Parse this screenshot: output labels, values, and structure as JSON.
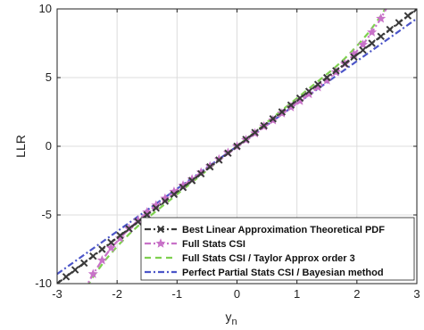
{
  "chart_data": {
    "type": "line",
    "title": "",
    "xlabel": "y",
    "xlabel_sub": "n",
    "ylabel": "LLR",
    "xlim": [
      -3,
      3
    ],
    "ylim": [
      -10,
      10
    ],
    "x_ticks": [
      -3,
      -2,
      -1,
      0,
      1,
      2,
      3
    ],
    "y_ticks": [
      -10,
      -5,
      0,
      5,
      10
    ],
    "x_tick_labels": [
      "-3",
      "-2",
      "-1",
      "0",
      "1",
      "2",
      "3"
    ],
    "y_tick_labels": [
      "-10",
      "-5",
      "0",
      "5",
      "10"
    ],
    "grid": true,
    "legend_position": "bottom-right",
    "series": [
      {
        "name": "Best Linear Approximation Theoretical PDF",
        "color": "#3a3a3a",
        "style": "dash-dot",
        "marker": "x",
        "x": [
          -3.0,
          -2.85,
          -2.7,
          -2.55,
          -2.4,
          -2.25,
          -2.1,
          -1.95,
          -1.8,
          -1.65,
          -1.5,
          -1.35,
          -1.2,
          -1.05,
          -0.9,
          -0.75,
          -0.6,
          -0.45,
          -0.3,
          -0.15,
          0.0,
          0.15,
          0.3,
          0.45,
          0.6,
          0.75,
          0.9,
          1.05,
          1.2,
          1.35,
          1.5,
          1.65,
          1.8,
          1.95,
          2.1,
          2.25,
          2.4,
          2.55,
          2.7,
          2.85,
          3.0
        ],
        "y": [
          -10.0,
          -9.5,
          -9.0,
          -8.5,
          -8.0,
          -7.5,
          -7.0,
          -6.5,
          -6.0,
          -5.5,
          -5.0,
          -4.5,
          -4.0,
          -3.5,
          -3.0,
          -2.5,
          -2.0,
          -1.5,
          -1.0,
          -0.5,
          0.0,
          0.5,
          1.0,
          1.5,
          2.0,
          2.5,
          3.0,
          3.5,
          4.0,
          4.5,
          5.0,
          5.5,
          6.0,
          6.5,
          7.0,
          7.5,
          8.0,
          8.5,
          9.0,
          9.5,
          10.0
        ]
      },
      {
        "name": "Full Stats CSI",
        "color": "#c872c8",
        "style": "dash-dot",
        "marker": "star",
        "x": [
          -2.55,
          -2.4,
          -2.25,
          -2.1,
          -1.95,
          -1.8,
          -1.65,
          -1.5,
          -1.35,
          -1.2,
          -1.05,
          -0.9,
          -0.75,
          -0.6,
          -0.45,
          -0.3,
          -0.15,
          0.0,
          0.15,
          0.3,
          0.45,
          0.6,
          0.75,
          0.9,
          1.05,
          1.2,
          1.35,
          1.5,
          1.65,
          1.8,
          1.95,
          2.1,
          2.25,
          2.4,
          2.55
        ],
        "y": [
          -10.5,
          -9.3,
          -8.3,
          -7.4,
          -6.7,
          -6.0,
          -5.4,
          -4.8,
          -4.3,
          -3.8,
          -3.3,
          -2.85,
          -2.4,
          -1.9,
          -1.45,
          -0.95,
          -0.47,
          0.0,
          0.47,
          0.95,
          1.45,
          1.9,
          2.4,
          2.85,
          3.3,
          3.8,
          4.3,
          4.8,
          5.4,
          6.0,
          6.7,
          7.4,
          8.3,
          9.3,
          10.5
        ]
      },
      {
        "name": "Full Stats CSI / Taylor Approx order 3",
        "color": "#7ed04f",
        "style": "dashed",
        "marker": "none",
        "x": [
          -2.6,
          -2.4,
          -2.2,
          -2.0,
          -1.8,
          -1.6,
          -1.4,
          -1.2,
          -1.0,
          -0.8,
          -0.6,
          -0.4,
          -0.2,
          0.0,
          0.2,
          0.4,
          0.6,
          0.8,
          1.0,
          1.2,
          1.4,
          1.6,
          1.8,
          2.0,
          2.2,
          2.4,
          2.6
        ],
        "y": [
          -10.9,
          -9.5,
          -8.3,
          -7.3,
          -6.4,
          -5.6,
          -4.9,
          -4.2,
          -3.5,
          -2.8,
          -2.1,
          -1.4,
          -0.7,
          0.0,
          0.7,
          1.4,
          2.1,
          2.8,
          3.5,
          4.2,
          4.9,
          5.6,
          6.4,
          7.3,
          8.3,
          9.5,
          10.9
        ]
      },
      {
        "name": "Perfect Partial Stats CSI / Bayesian method",
        "color": "#4b55c8",
        "style": "dash-dot",
        "marker": "none",
        "x": [
          -3.0,
          3.0
        ],
        "y": [
          -9.3,
          9.3
        ]
      }
    ]
  }
}
